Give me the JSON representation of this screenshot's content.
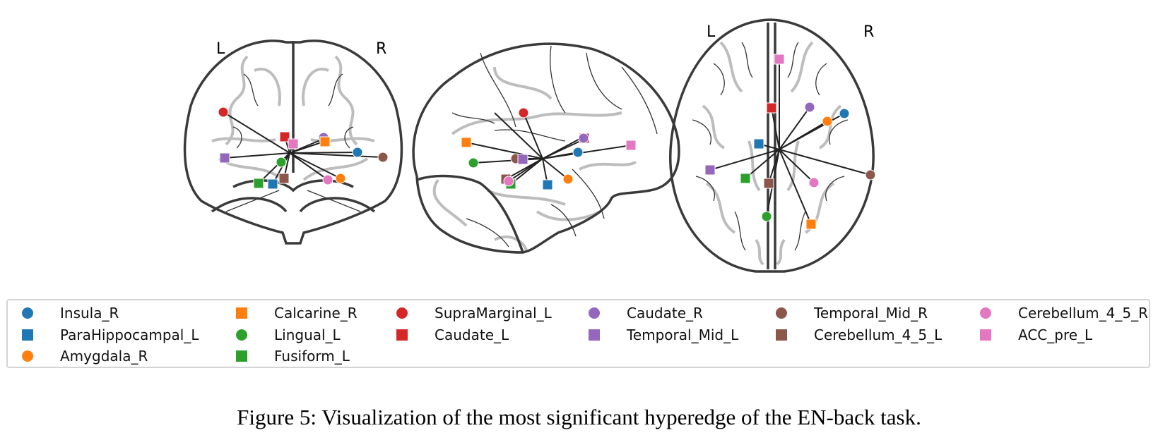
{
  "views": {
    "coronal": {
      "left_label": "L",
      "right_label": "R"
    },
    "axial": {
      "left_label": "L",
      "right_label": "R"
    }
  },
  "regions": [
    {
      "name": "Insula_R",
      "marker": "circle",
      "color": "#1f77b4"
    },
    {
      "name": "ParaHippocampal_L",
      "marker": "square",
      "color": "#1f77b4"
    },
    {
      "name": "Amygdala_R",
      "marker": "circle",
      "color": "#ff7f0e"
    },
    {
      "name": "Calcarine_R",
      "marker": "square",
      "color": "#ff7f0e"
    },
    {
      "name": "Lingual_L",
      "marker": "circle",
      "color": "#2ca02c"
    },
    {
      "name": "Fusiform_L",
      "marker": "square",
      "color": "#2ca02c"
    },
    {
      "name": "SupraMarginal_L",
      "marker": "circle",
      "color": "#d62728"
    },
    {
      "name": "Caudate_L",
      "marker": "square",
      "color": "#d62728"
    },
    {
      "name": "Caudate_R",
      "marker": "circle",
      "color": "#9467bd"
    },
    {
      "name": "Temporal_Mid_L",
      "marker": "square",
      "color": "#9467bd"
    },
    {
      "name": "Temporal_Mid_R",
      "marker": "circle",
      "color": "#8c564b"
    },
    {
      "name": "Cerebellum_4_5_L",
      "marker": "square",
      "color": "#8c564b"
    },
    {
      "name": "Cerebellum_4_5_R",
      "marker": "circle",
      "color": "#e377c2"
    },
    {
      "name": "ACC_pre_L",
      "marker": "square",
      "color": "#e377c2"
    }
  ],
  "caption": "Figure 5: Visualization of the most significant hyperedge of the EN-back task."
}
